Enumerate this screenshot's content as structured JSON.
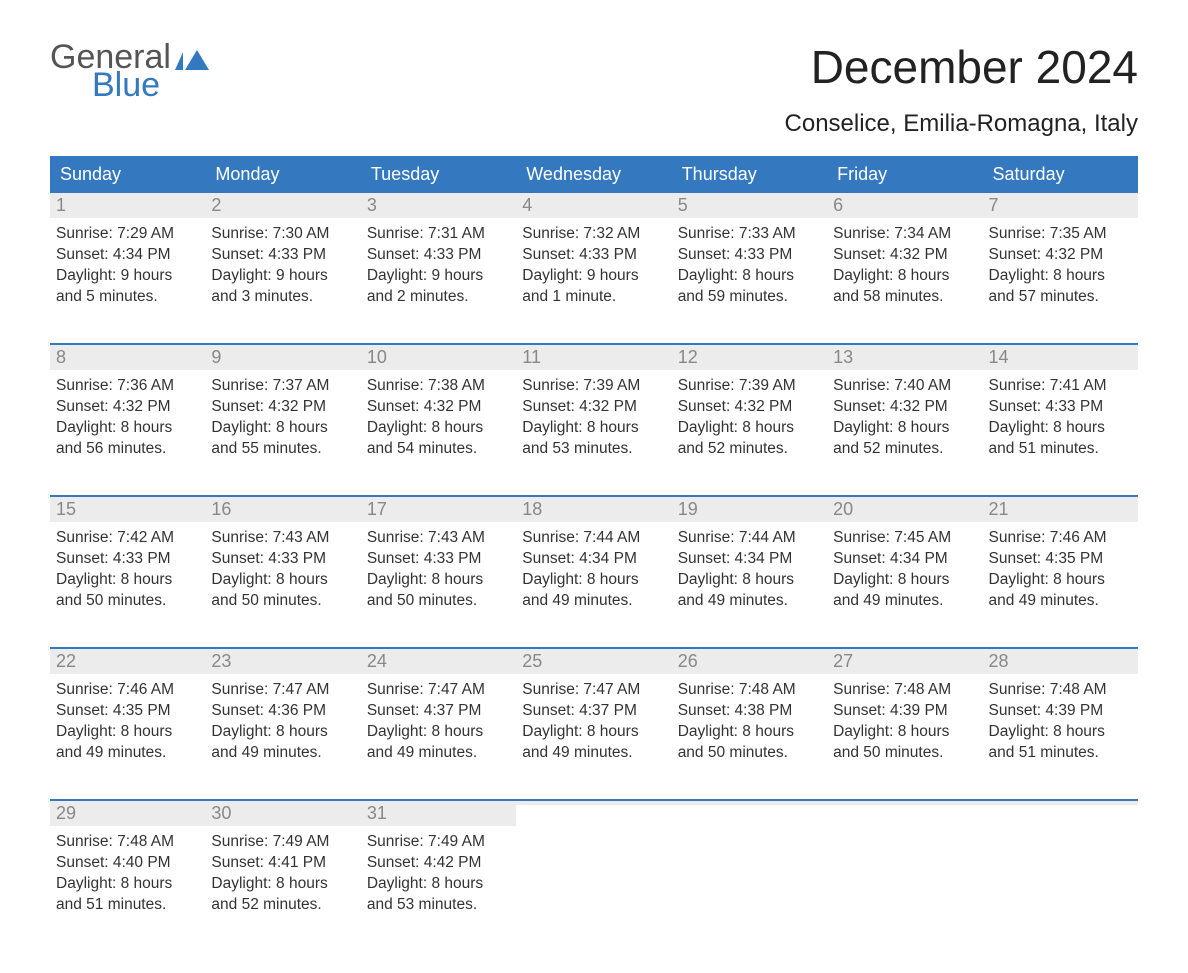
{
  "logo": {
    "line1": "General",
    "line2": "Blue"
  },
  "title": "December 2024",
  "subtitle": "Conselice, Emilia-Romagna, Italy",
  "colors": {
    "accent": "#3478c0",
    "header_bg": "#3478c0",
    "header_text": "#ffffff",
    "day_num_bg": "#ececec",
    "day_num_text": "#888888",
    "body_text": "#333333",
    "background": "#ffffff"
  },
  "day_headers": [
    "Sunday",
    "Monday",
    "Tuesday",
    "Wednesday",
    "Thursday",
    "Friday",
    "Saturday"
  ],
  "weeks": [
    [
      {
        "num": "1",
        "sunrise": "Sunrise: 7:29 AM",
        "sunset": "Sunset: 4:34 PM",
        "dl1": "Daylight: 9 hours",
        "dl2": "and 5 minutes."
      },
      {
        "num": "2",
        "sunrise": "Sunrise: 7:30 AM",
        "sunset": "Sunset: 4:33 PM",
        "dl1": "Daylight: 9 hours",
        "dl2": "and 3 minutes."
      },
      {
        "num": "3",
        "sunrise": "Sunrise: 7:31 AM",
        "sunset": "Sunset: 4:33 PM",
        "dl1": "Daylight: 9 hours",
        "dl2": "and 2 minutes."
      },
      {
        "num": "4",
        "sunrise": "Sunrise: 7:32 AM",
        "sunset": "Sunset: 4:33 PM",
        "dl1": "Daylight: 9 hours",
        "dl2": "and 1 minute."
      },
      {
        "num": "5",
        "sunrise": "Sunrise: 7:33 AM",
        "sunset": "Sunset: 4:33 PM",
        "dl1": "Daylight: 8 hours",
        "dl2": "and 59 minutes."
      },
      {
        "num": "6",
        "sunrise": "Sunrise: 7:34 AM",
        "sunset": "Sunset: 4:32 PM",
        "dl1": "Daylight: 8 hours",
        "dl2": "and 58 minutes."
      },
      {
        "num": "7",
        "sunrise": "Sunrise: 7:35 AM",
        "sunset": "Sunset: 4:32 PM",
        "dl1": "Daylight: 8 hours",
        "dl2": "and 57 minutes."
      }
    ],
    [
      {
        "num": "8",
        "sunrise": "Sunrise: 7:36 AM",
        "sunset": "Sunset: 4:32 PM",
        "dl1": "Daylight: 8 hours",
        "dl2": "and 56 minutes."
      },
      {
        "num": "9",
        "sunrise": "Sunrise: 7:37 AM",
        "sunset": "Sunset: 4:32 PM",
        "dl1": "Daylight: 8 hours",
        "dl2": "and 55 minutes."
      },
      {
        "num": "10",
        "sunrise": "Sunrise: 7:38 AM",
        "sunset": "Sunset: 4:32 PM",
        "dl1": "Daylight: 8 hours",
        "dl2": "and 54 minutes."
      },
      {
        "num": "11",
        "sunrise": "Sunrise: 7:39 AM",
        "sunset": "Sunset: 4:32 PM",
        "dl1": "Daylight: 8 hours",
        "dl2": "and 53 minutes."
      },
      {
        "num": "12",
        "sunrise": "Sunrise: 7:39 AM",
        "sunset": "Sunset: 4:32 PM",
        "dl1": "Daylight: 8 hours",
        "dl2": "and 52 minutes."
      },
      {
        "num": "13",
        "sunrise": "Sunrise: 7:40 AM",
        "sunset": "Sunset: 4:32 PM",
        "dl1": "Daylight: 8 hours",
        "dl2": "and 52 minutes."
      },
      {
        "num": "14",
        "sunrise": "Sunrise: 7:41 AM",
        "sunset": "Sunset: 4:33 PM",
        "dl1": "Daylight: 8 hours",
        "dl2": "and 51 minutes."
      }
    ],
    [
      {
        "num": "15",
        "sunrise": "Sunrise: 7:42 AM",
        "sunset": "Sunset: 4:33 PM",
        "dl1": "Daylight: 8 hours",
        "dl2": "and 50 minutes."
      },
      {
        "num": "16",
        "sunrise": "Sunrise: 7:43 AM",
        "sunset": "Sunset: 4:33 PM",
        "dl1": "Daylight: 8 hours",
        "dl2": "and 50 minutes."
      },
      {
        "num": "17",
        "sunrise": "Sunrise: 7:43 AM",
        "sunset": "Sunset: 4:33 PM",
        "dl1": "Daylight: 8 hours",
        "dl2": "and 50 minutes."
      },
      {
        "num": "18",
        "sunrise": "Sunrise: 7:44 AM",
        "sunset": "Sunset: 4:34 PM",
        "dl1": "Daylight: 8 hours",
        "dl2": "and 49 minutes."
      },
      {
        "num": "19",
        "sunrise": "Sunrise: 7:44 AM",
        "sunset": "Sunset: 4:34 PM",
        "dl1": "Daylight: 8 hours",
        "dl2": "and 49 minutes."
      },
      {
        "num": "20",
        "sunrise": "Sunrise: 7:45 AM",
        "sunset": "Sunset: 4:34 PM",
        "dl1": "Daylight: 8 hours",
        "dl2": "and 49 minutes."
      },
      {
        "num": "21",
        "sunrise": "Sunrise: 7:46 AM",
        "sunset": "Sunset: 4:35 PM",
        "dl1": "Daylight: 8 hours",
        "dl2": "and 49 minutes."
      }
    ],
    [
      {
        "num": "22",
        "sunrise": "Sunrise: 7:46 AM",
        "sunset": "Sunset: 4:35 PM",
        "dl1": "Daylight: 8 hours",
        "dl2": "and 49 minutes."
      },
      {
        "num": "23",
        "sunrise": "Sunrise: 7:47 AM",
        "sunset": "Sunset: 4:36 PM",
        "dl1": "Daylight: 8 hours",
        "dl2": "and 49 minutes."
      },
      {
        "num": "24",
        "sunrise": "Sunrise: 7:47 AM",
        "sunset": "Sunset: 4:37 PM",
        "dl1": "Daylight: 8 hours",
        "dl2": "and 49 minutes."
      },
      {
        "num": "25",
        "sunrise": "Sunrise: 7:47 AM",
        "sunset": "Sunset: 4:37 PM",
        "dl1": "Daylight: 8 hours",
        "dl2": "and 49 minutes."
      },
      {
        "num": "26",
        "sunrise": "Sunrise: 7:48 AM",
        "sunset": "Sunset: 4:38 PM",
        "dl1": "Daylight: 8 hours",
        "dl2": "and 50 minutes."
      },
      {
        "num": "27",
        "sunrise": "Sunrise: 7:48 AM",
        "sunset": "Sunset: 4:39 PM",
        "dl1": "Daylight: 8 hours",
        "dl2": "and 50 minutes."
      },
      {
        "num": "28",
        "sunrise": "Sunrise: 7:48 AM",
        "sunset": "Sunset: 4:39 PM",
        "dl1": "Daylight: 8 hours",
        "dl2": "and 51 minutes."
      }
    ],
    [
      {
        "num": "29",
        "sunrise": "Sunrise: 7:48 AM",
        "sunset": "Sunset: 4:40 PM",
        "dl1": "Daylight: 8 hours",
        "dl2": "and 51 minutes."
      },
      {
        "num": "30",
        "sunrise": "Sunrise: 7:49 AM",
        "sunset": "Sunset: 4:41 PM",
        "dl1": "Daylight: 8 hours",
        "dl2": "and 52 minutes."
      },
      {
        "num": "31",
        "sunrise": "Sunrise: 7:49 AM",
        "sunset": "Sunset: 4:42 PM",
        "dl1": "Daylight: 8 hours",
        "dl2": "and 53 minutes."
      },
      {
        "empty": true
      },
      {
        "empty": true
      },
      {
        "empty": true
      },
      {
        "empty": true
      }
    ]
  ]
}
